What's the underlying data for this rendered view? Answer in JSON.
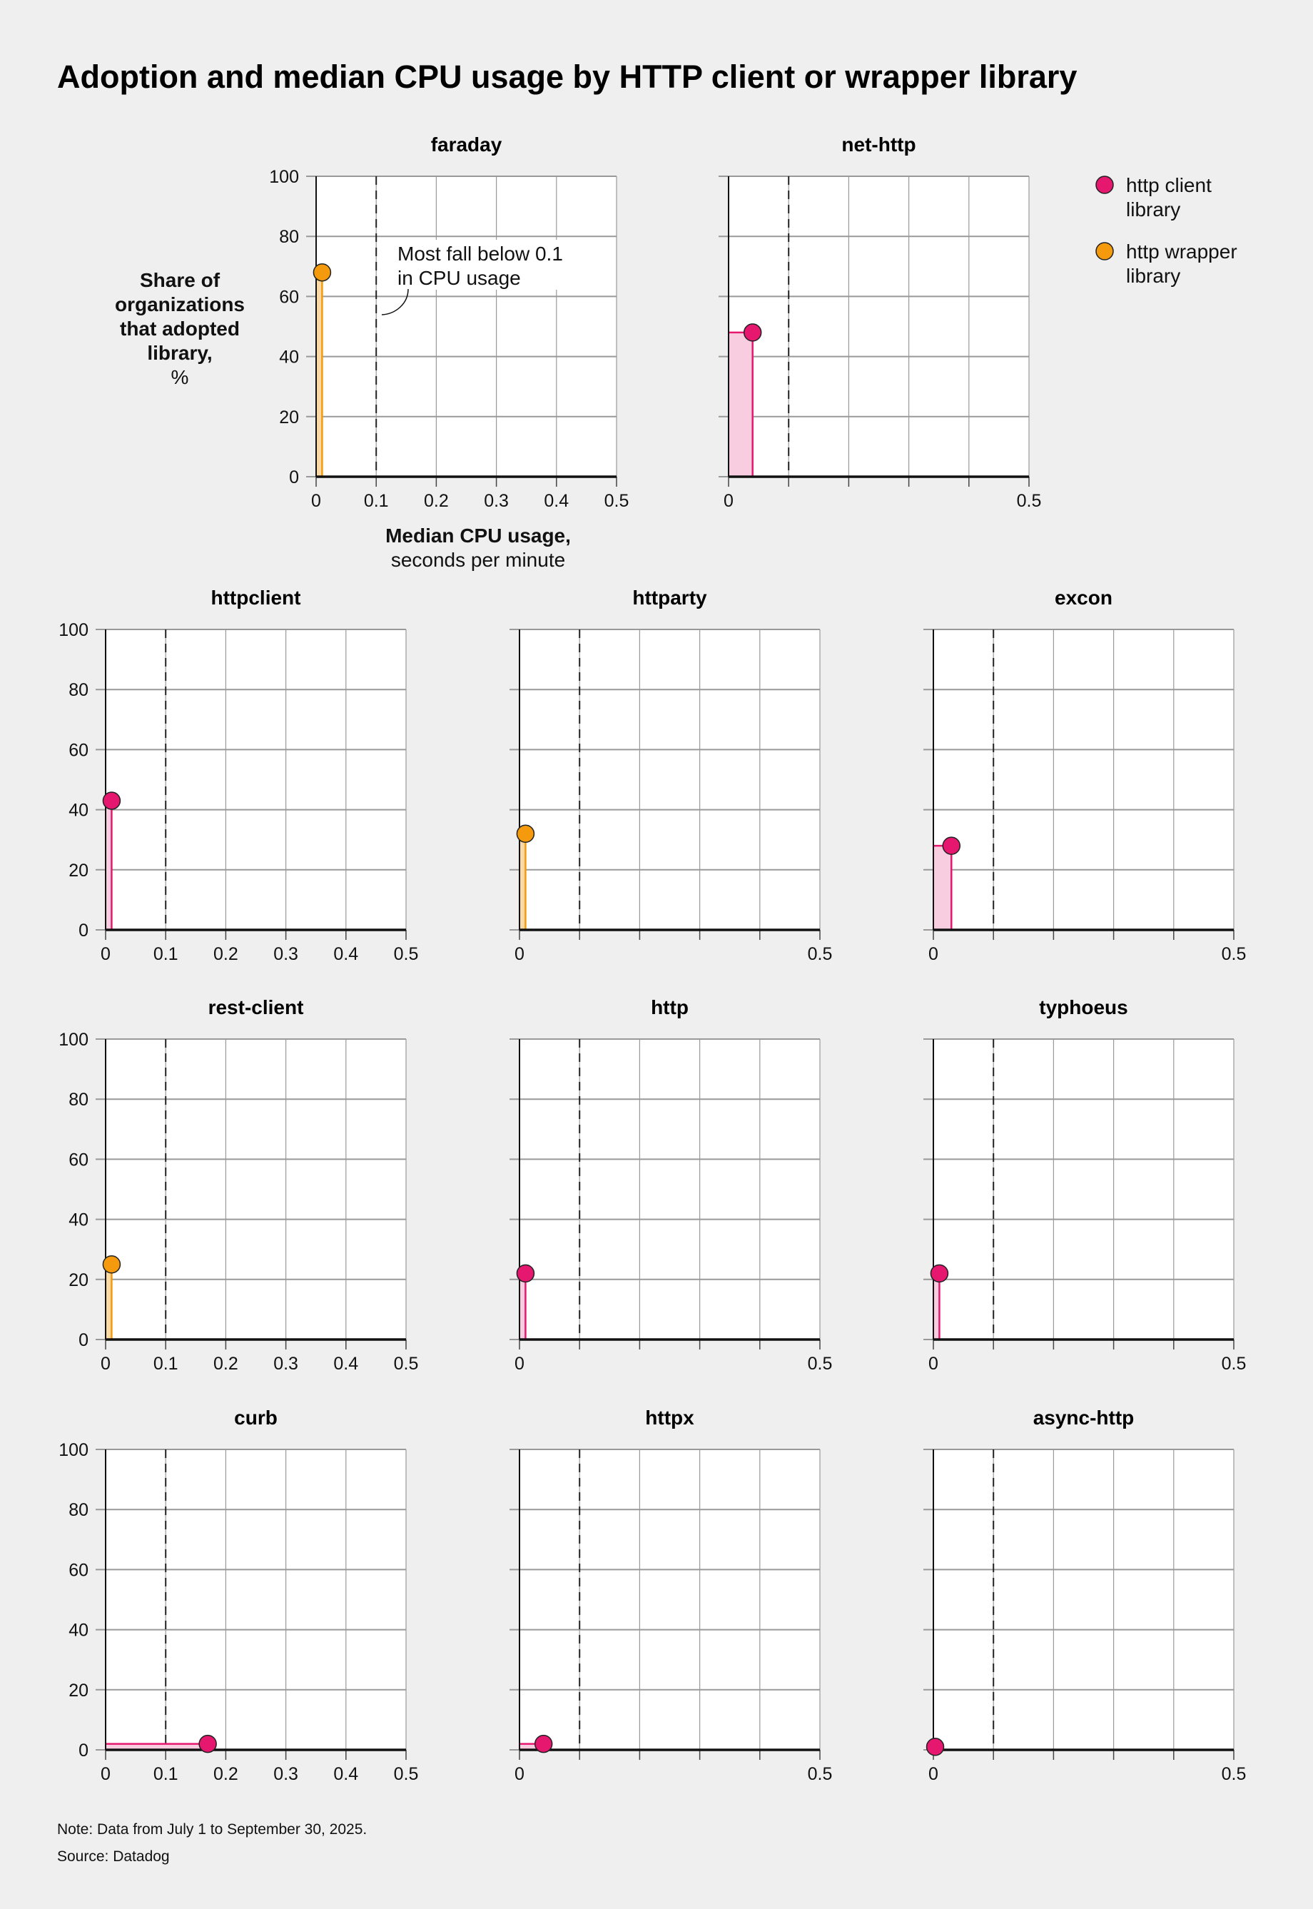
{
  "title": "Adoption and median CPU usage by HTTP client or wrapper library",
  "y_axis_label": [
    "Share of",
    "organizations",
    "that adopted",
    "library,",
    "%"
  ],
  "x_axis_label": [
    "Median CPU usage,",
    "seconds per minute"
  ],
  "annotation": [
    "Most fall below 0.1",
    "in CPU usage"
  ],
  "legend": [
    {
      "label": [
        "http client",
        "library"
      ],
      "color": "#e5176f"
    },
    {
      "label": [
        "http wrapper",
        "library"
      ],
      "color": "#f59a0d"
    }
  ],
  "notes": [
    "Note: Data from July 1 to September 30, 2025.",
    "Source: Datadog"
  ],
  "colors": {
    "client": "#e5176f",
    "client_fill": "#f8cde0",
    "wrapper": "#f59a0d",
    "wrapper_fill": "#fbd9a4"
  },
  "chart_data": [
    {
      "type": "scatter",
      "title": "faraday",
      "category": "http wrapper library",
      "x": 0.01,
      "y": 68,
      "xlim": [
        0,
        0.5
      ],
      "ylim": [
        0,
        100
      ],
      "reference_line_x": 0.1,
      "xticks": [
        "0",
        "0.1",
        "0.2",
        "0.3",
        "0.4",
        "0.5"
      ],
      "yticks": [
        "0",
        "20",
        "40",
        "60",
        "80",
        "100"
      ],
      "grid": true
    },
    {
      "type": "scatter",
      "title": "net-http",
      "category": "http client library",
      "x": 0.04,
      "y": 48,
      "xlim": [
        0,
        0.5
      ],
      "ylim": [
        0,
        100
      ],
      "reference_line_x": 0.1,
      "xticks": [
        "0",
        "",
        "",
        "",
        "",
        "0.5"
      ],
      "yticks": [],
      "grid": true
    },
    {
      "type": "scatter",
      "title": "httpclient",
      "category": "http client library",
      "x": 0.01,
      "y": 43,
      "xlim": [
        0,
        0.5
      ],
      "ylim": [
        0,
        100
      ],
      "reference_line_x": 0.1,
      "xticks": [
        "0",
        "0.1",
        "0.2",
        "0.3",
        "0.4",
        "0.5"
      ],
      "yticks": [
        "0",
        "20",
        "40",
        "60",
        "80",
        "100"
      ],
      "grid": true
    },
    {
      "type": "scatter",
      "title": "httparty",
      "category": "http wrapper library",
      "x": 0.01,
      "y": 32,
      "xlim": [
        0,
        0.5
      ],
      "ylim": [
        0,
        100
      ],
      "reference_line_x": 0.1,
      "xticks": [
        "0",
        "",
        "",
        "",
        "",
        "0.5"
      ],
      "yticks": [],
      "grid": true
    },
    {
      "type": "scatter",
      "title": "excon",
      "category": "http client library",
      "x": 0.03,
      "y": 28,
      "xlim": [
        0,
        0.5
      ],
      "ylim": [
        0,
        100
      ],
      "reference_line_x": 0.1,
      "xticks": [
        "0",
        "",
        "",
        "",
        "",
        "0.5"
      ],
      "yticks": [],
      "grid": true
    },
    {
      "type": "scatter",
      "title": "rest-client",
      "category": "http wrapper library",
      "x": 0.01,
      "y": 25,
      "xlim": [
        0,
        0.5
      ],
      "ylim": [
        0,
        100
      ],
      "reference_line_x": 0.1,
      "xticks": [
        "0",
        "0.1",
        "0.2",
        "0.3",
        "0.4",
        "0.5"
      ],
      "yticks": [
        "0",
        "20",
        "40",
        "60",
        "80",
        "100"
      ],
      "grid": true
    },
    {
      "type": "scatter",
      "title": "http",
      "category": "http client library",
      "x": 0.01,
      "y": 22,
      "xlim": [
        0,
        0.5
      ],
      "ylim": [
        0,
        100
      ],
      "reference_line_x": 0.1,
      "xticks": [
        "0",
        "",
        "",
        "",
        "",
        "0.5"
      ],
      "yticks": [],
      "grid": true
    },
    {
      "type": "scatter",
      "title": "typhoeus",
      "category": "http client library",
      "x": 0.01,
      "y": 22,
      "xlim": [
        0,
        0.5
      ],
      "ylim": [
        0,
        100
      ],
      "reference_line_x": 0.1,
      "xticks": [
        "0",
        "",
        "",
        "",
        "",
        "0.5"
      ],
      "yticks": [],
      "grid": true
    },
    {
      "type": "scatter",
      "title": "curb",
      "category": "http client library",
      "x": 0.17,
      "y": 2,
      "xlim": [
        0,
        0.5
      ],
      "ylim": [
        0,
        100
      ],
      "reference_line_x": 0.1,
      "xticks": [
        "0",
        "0.1",
        "0.2",
        "0.3",
        "0.4",
        "0.5"
      ],
      "yticks": [
        "0",
        "20",
        "40",
        "60",
        "80",
        "100"
      ],
      "grid": true
    },
    {
      "type": "scatter",
      "title": "httpx",
      "category": "http client library",
      "x": 0.04,
      "y": 2,
      "xlim": [
        0,
        0.5
      ],
      "ylim": [
        0,
        100
      ],
      "reference_line_x": 0.1,
      "xticks": [
        "0",
        "",
        "",
        "",
        "",
        "0.5"
      ],
      "yticks": [],
      "grid": true
    },
    {
      "type": "scatter",
      "title": "async-http",
      "category": "http client library",
      "x": 0.003,
      "y": 1,
      "xlim": [
        0,
        0.5
      ],
      "ylim": [
        0,
        100
      ],
      "reference_line_x": 0.1,
      "xticks": [
        "0",
        "",
        "",
        "",
        "",
        "0.5"
      ],
      "yticks": [],
      "grid": true
    }
  ]
}
